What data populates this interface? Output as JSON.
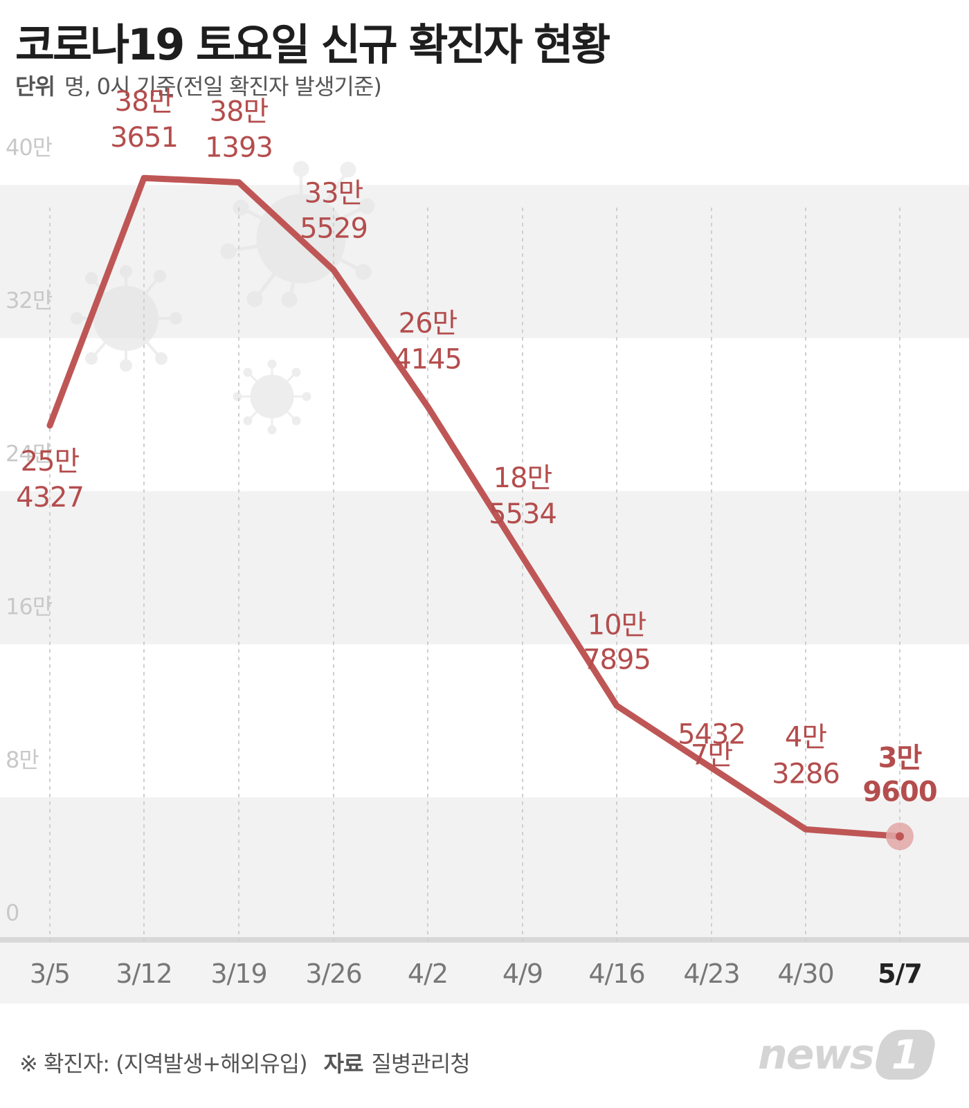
{
  "title": "코로나19 토요일 신규 확진자 현황",
  "unit": {
    "label": "단위",
    "text": "명, 0시 기준(전일 확진자 발생기준)"
  },
  "footer": {
    "note": "※ 확진자: (지역발생+해외유입)",
    "source_label": "자료",
    "source": "질병관리청"
  },
  "logo": {
    "text": "news",
    "badge": "1"
  },
  "colors": {
    "line": "#bf5656",
    "label": "#b44d4d",
    "band": "#f2f2f2",
    "tick": "#c8c8c8",
    "xlabel": "#777777",
    "xlabel_last": "#222222",
    "axis": "#d8d8d8",
    "xband": "#f3f3f3"
  },
  "chart_data": {
    "type": "line",
    "categories": [
      "3/5",
      "3/12",
      "3/19",
      "3/26",
      "4/2",
      "4/9",
      "4/16",
      "4/23",
      "4/30",
      "5/7"
    ],
    "series": [
      {
        "values": [
          254327,
          383651,
          381393,
          335529,
          264145,
          null,
          107895,
          75432,
          43286,
          39600
        ],
        "labels": [
          [
            "25만",
            "4327"
          ],
          [
            "38만",
            "3651"
          ],
          [
            "38만",
            "1393"
          ],
          [
            "33만",
            "5529"
          ],
          [
            "26만",
            "4145"
          ],
          [
            "18만",
            "5534"
          ],
          [
            "10만",
            "7895"
          ],
          [
            "7만",
            "5432"
          ],
          [
            "4만",
            "3286"
          ],
          [
            "3만",
            "9600"
          ]
        ]
      }
    ],
    "yticks": [
      "40만",
      "32만",
      "24만",
      "16만",
      "8만",
      "0"
    ],
    "ytick_values": [
      400000,
      320000,
      240000,
      160000,
      80000,
      0
    ],
    "ylim": [
      0,
      400000
    ],
    "grid": false,
    "xlabel": "",
    "ylabel": ""
  }
}
